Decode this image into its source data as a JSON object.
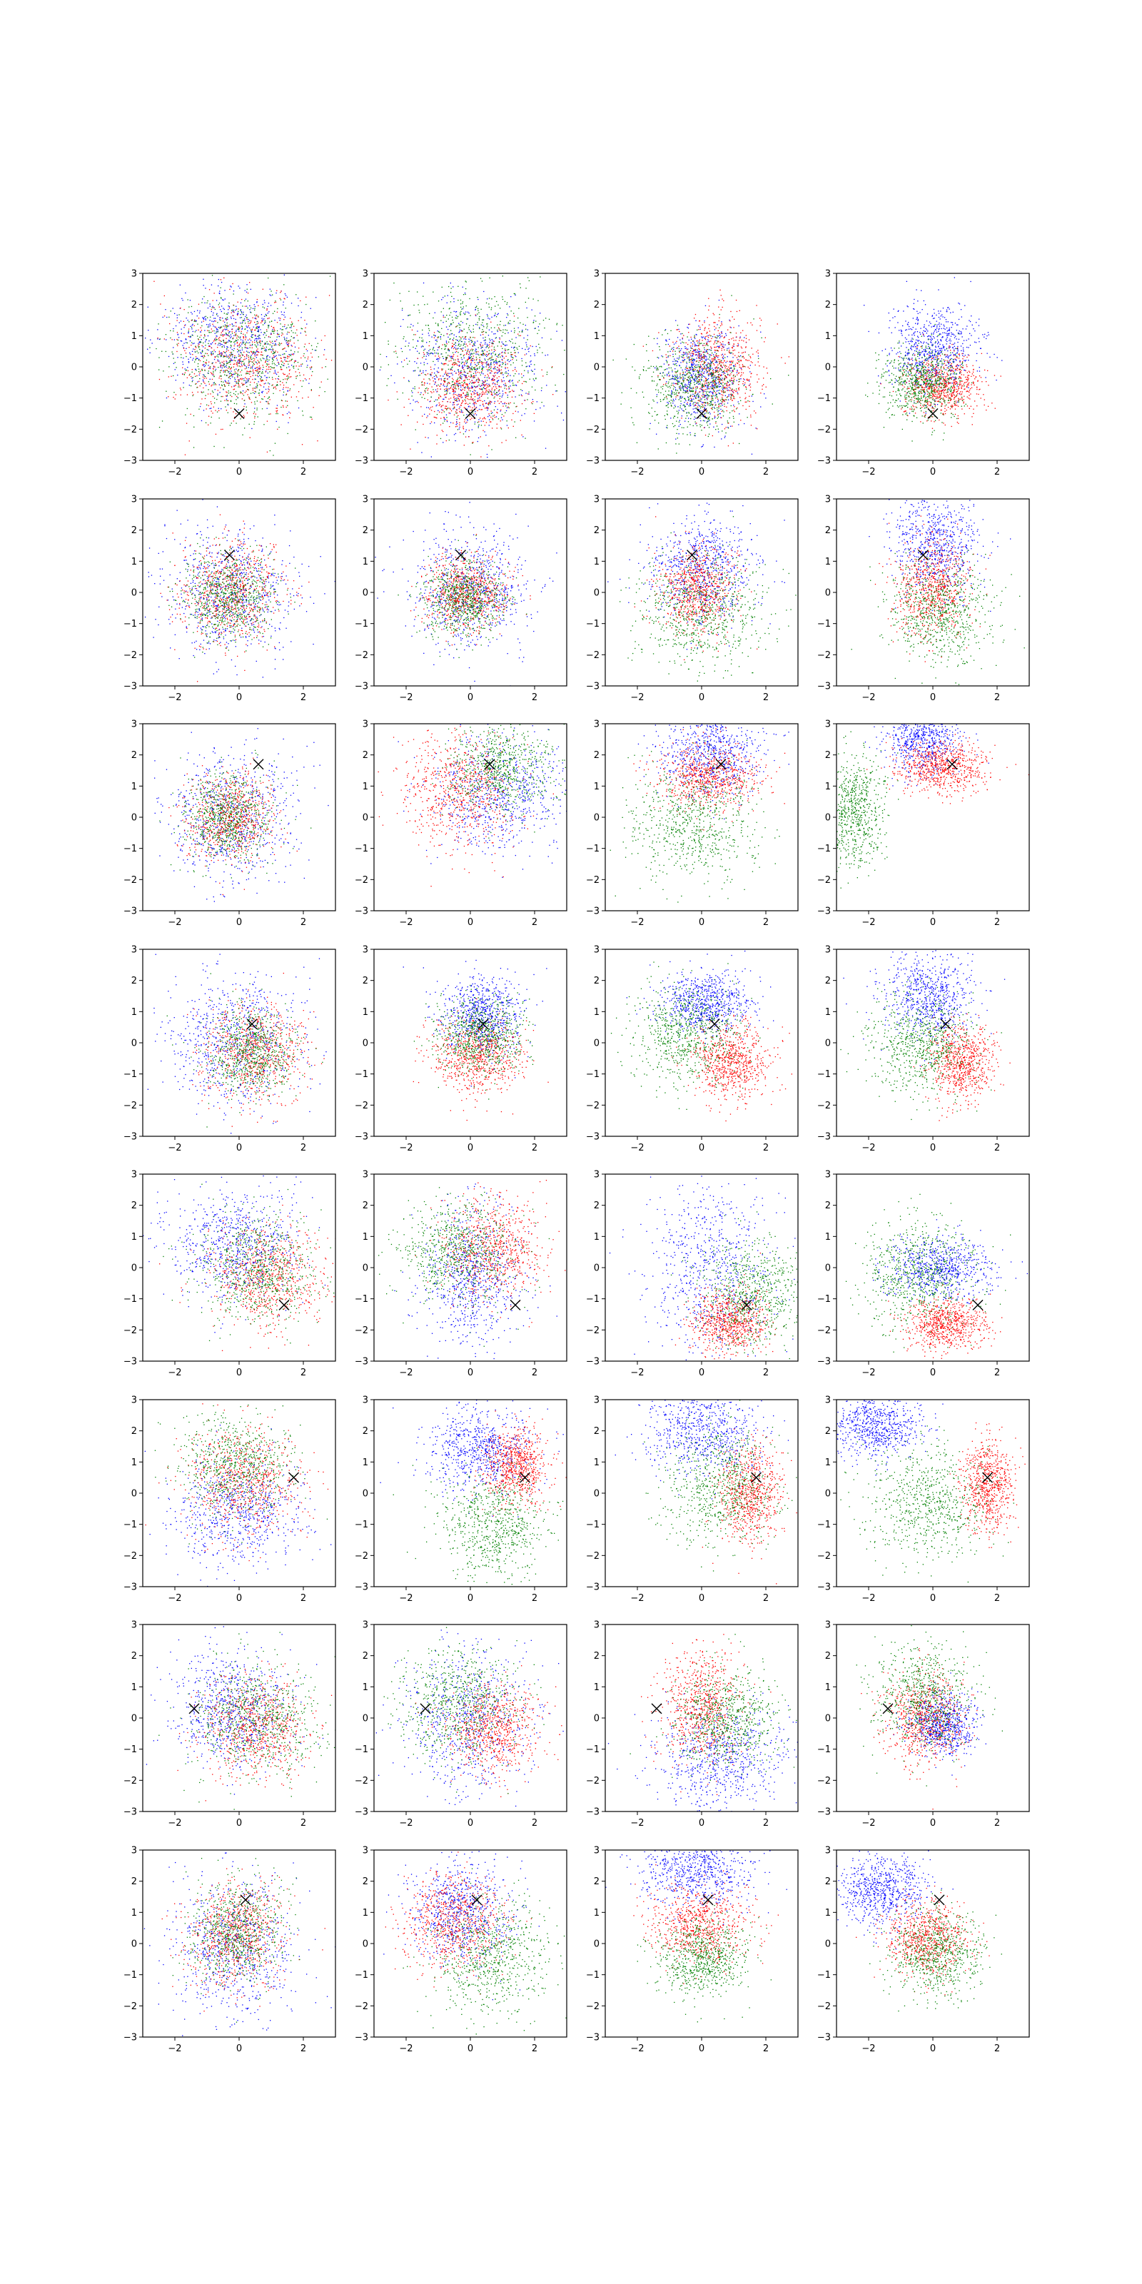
{
  "figure": {
    "rows": 8,
    "cols": 4,
    "colors": {
      "blue": "#0000ff",
      "red": "#ff0000",
      "green": "#008000",
      "marker": "#000000"
    }
  },
  "chart_data": {
    "type": "scatter",
    "note_series": [
      "blue",
      "red",
      "green"
    ],
    "xlim": [
      -3,
      3
    ],
    "ylim": [
      -3,
      3
    ],
    "xticks": [
      -2,
      0,
      2
    ],
    "yticks": [
      -3,
      -2,
      -1,
      0,
      1,
      2,
      3
    ],
    "grid": false,
    "legend": "none",
    "rows": [
      {
        "marker": [
          0.0,
          -1.5
        ],
        "panels": [
          {
            "blue": [
              [
                -0.2,
                0.8,
                1.1,
                0.9
              ]
            ],
            "red": [
              [
                0.2,
                0.2,
                1.1,
                1.0
              ]
            ],
            "green": [
              [
                0.1,
                0.3,
                1.1,
                1.0
              ]
            ]
          },
          {
            "blue": [
              [
                0.1,
                -0.1,
                1.0,
                1.0
              ]
            ],
            "red": [
              [
                -0.1,
                -0.5,
                0.8,
                0.8
              ]
            ],
            "green": [
              [
                0.0,
                0.6,
                1.2,
                1.2
              ]
            ]
          },
          {
            "blue": [
              [
                0.0,
                -0.3,
                0.6,
                0.8
              ]
            ],
            "red": [
              [
                0.5,
                0.0,
                0.7,
                0.9
              ]
            ],
            "green": [
              [
                -0.3,
                -0.5,
                0.8,
                0.8
              ]
            ]
          },
          {
            "blue": [
              [
                0.0,
                0.6,
                0.7,
                0.7
              ]
            ],
            "red": [
              [
                0.3,
                -0.6,
                0.6,
                0.5
              ]
            ],
            "green": [
              [
                -0.4,
                -0.5,
                0.6,
                0.6
              ]
            ]
          }
        ]
      },
      {
        "marker": [
          -0.3,
          1.2
        ],
        "panels": [
          {
            "blue": [
              [
                -0.3,
                0.0,
                1.0,
                1.0
              ]
            ],
            "red": [
              [
                -0.3,
                0.0,
                0.8,
                0.8
              ]
            ],
            "green": [
              [
                -0.3,
                -0.1,
                0.7,
                0.7
              ]
            ]
          },
          {
            "blue": [
              [
                0.0,
                0.2,
                0.9,
                1.0
              ]
            ],
            "red": [
              [
                -0.1,
                0.0,
                0.6,
                0.6
              ]
            ],
            "green": [
              [
                -0.2,
                -0.2,
                0.6,
                0.6
              ]
            ]
          },
          {
            "blue": [
              [
                0.0,
                0.8,
                0.8,
                0.8
              ]
            ],
            "red": [
              [
                -0.1,
                0.1,
                0.6,
                0.7
              ]
            ],
            "green": [
              [
                0.0,
                -0.6,
                1.0,
                0.9
              ]
            ]
          },
          {
            "blue": [
              [
                0.1,
                1.6,
                0.7,
                0.8
              ]
            ],
            "red": [
              [
                0.0,
                0.1,
                0.6,
                0.8
              ]
            ],
            "green": [
              [
                0.2,
                -0.6,
                0.8,
                0.8
              ]
            ]
          }
        ]
      },
      {
        "marker": [
          0.6,
          1.7
        ],
        "panels": [
          {
            "blue": [
              [
                -0.3,
                0.0,
                1.0,
                1.1
              ]
            ],
            "red": [
              [
                -0.3,
                0.0,
                0.7,
                0.7
              ]
            ],
            "green": [
              [
                -0.3,
                0.0,
                0.7,
                0.7
              ]
            ]
          },
          {
            "blue": [
              [
                0.9,
                0.7,
                1.0,
                0.9
              ]
            ],
            "red": [
              [
                -0.3,
                0.8,
                0.9,
                0.9
              ]
            ],
            "green": [
              [
                1.0,
                1.6,
                0.8,
                0.7
              ]
            ]
          },
          {
            "blue": [
              [
                0.3,
                2.1,
                0.8,
                0.7
              ]
            ],
            "red": [
              [
                0.2,
                1.3,
                0.8,
                0.5
              ]
            ],
            "green": [
              [
                -0.3,
                -0.2,
                1.0,
                0.9
              ]
            ]
          },
          {
            "blue": [
              [
                -0.3,
                2.6,
                0.6,
                0.6
              ]
            ],
            "red": [
              [
                0.3,
                1.6,
                0.7,
                0.4
              ]
            ],
            "green": [
              [
                -2.5,
                0.2,
                0.5,
                0.9
              ]
            ]
          }
        ]
      },
      {
        "marker": [
          0.4,
          0.6
        ],
        "panels": [
          {
            "blue": [
              [
                -0.1,
                0.1,
                1.1,
                1.1
              ]
            ],
            "red": [
              [
                0.5,
                -0.3,
                0.8,
                0.8
              ]
            ],
            "green": [
              [
                0.3,
                -0.3,
                0.7,
                0.7
              ]
            ]
          },
          {
            "blue": [
              [
                0.3,
                0.9,
                0.6,
                0.6
              ]
            ],
            "red": [
              [
                0.2,
                -0.4,
                0.7,
                0.6
              ]
            ],
            "green": [
              [
                0.3,
                0.3,
                0.7,
                0.6
              ]
            ]
          },
          {
            "blue": [
              [
                0.1,
                1.3,
                0.7,
                0.5
              ]
            ],
            "red": [
              [
                0.9,
                -0.6,
                0.6,
                0.6
              ]
            ],
            "green": [
              [
                -0.5,
                0.3,
                0.8,
                0.8
              ]
            ]
          },
          {
            "blue": [
              [
                -0.1,
                1.5,
                0.7,
                0.7
              ]
            ],
            "red": [
              [
                0.9,
                -0.6,
                0.5,
                0.6
              ]
            ],
            "green": [
              [
                -0.4,
                0.0,
                0.8,
                0.8
              ]
            ]
          }
        ]
      },
      {
        "marker": [
          1.4,
          -1.2
        ],
        "panels": [
          {
            "blue": [
              [
                -0.2,
                0.8,
                1.0,
                0.9
              ]
            ],
            "red": [
              [
                0.9,
                -0.3,
                0.9,
                0.8
              ]
            ],
            "green": [
              [
                0.5,
                0.0,
                0.9,
                0.9
              ]
            ]
          },
          {
            "blue": [
              [
                0.0,
                -0.3,
                0.8,
                1.1
              ]
            ],
            "red": [
              [
                0.7,
                0.6,
                0.8,
                0.8
              ]
            ],
            "green": [
              [
                -0.4,
                0.5,
                0.9,
                0.8
              ]
            ]
          },
          {
            "blue": [
              [
                0.3,
                0.0,
                1.0,
                1.4
              ]
            ],
            "red": [
              [
                0.8,
                -1.7,
                0.6,
                0.5
              ]
            ],
            "green": [
              [
                1.6,
                -0.8,
                0.8,
                0.8
              ]
            ]
          },
          {
            "blue": [
              [
                0.2,
                0.0,
                0.8,
                0.5
              ]
            ],
            "red": [
              [
                0.4,
                -1.8,
                0.6,
                0.4
              ]
            ],
            "green": [
              [
                -0.5,
                -0.2,
                0.9,
                0.9
              ]
            ]
          }
        ]
      },
      {
        "marker": [
          1.7,
          0.5
        ],
        "panels": [
          {
            "blue": [
              [
                -0.1,
                -0.6,
                1.0,
                0.9
              ]
            ],
            "red": [
              [
                0.1,
                0.4,
                0.9,
                0.9
              ]
            ],
            "green": [
              [
                -0.1,
                0.9,
                0.8,
                0.8
              ]
            ]
          },
          {
            "blue": [
              [
                0.3,
                1.4,
                0.8,
                0.7
              ]
            ],
            "red": [
              [
                1.4,
                0.9,
                0.5,
                0.6
              ]
            ],
            "green": [
              [
                0.7,
                -1.0,
                0.8,
                0.8
              ]
            ]
          },
          {
            "blue": [
              [
                0.0,
                2.0,
                0.9,
                0.7
              ]
            ],
            "red": [
              [
                1.5,
                0.0,
                0.5,
                0.8
              ]
            ],
            "green": [
              [
                0.6,
                0.2,
                0.9,
                0.9
              ]
            ]
          },
          {
            "blue": [
              [
                -1.8,
                2.2,
                0.7,
                0.5
              ]
            ],
            "red": [
              [
                1.7,
                0.3,
                0.4,
                0.7
              ]
            ],
            "green": [
              [
                -0.2,
                -0.3,
                1.0,
                0.9
              ]
            ]
          }
        ]
      },
      {
        "marker": [
          -1.4,
          0.3
        ],
        "panels": [
          {
            "blue": [
              [
                -0.3,
                0.3,
                0.9,
                0.9
              ]
            ],
            "red": [
              [
                0.5,
                -0.2,
                0.8,
                0.8
              ]
            ],
            "green": [
              [
                0.5,
                0.0,
                0.9,
                0.9
              ]
            ]
          },
          {
            "blue": [
              [
                0.0,
                -0.1,
                1.0,
                1.2
              ]
            ],
            "red": [
              [
                0.7,
                -0.3,
                0.7,
                0.7
              ]
            ],
            "green": [
              [
                -0.4,
                0.5,
                0.9,
                0.9
              ]
            ]
          },
          {
            "blue": [
              [
                0.6,
                -1.3,
                1.0,
                0.8
              ]
            ],
            "red": [
              [
                0.0,
                0.4,
                0.6,
                0.9
              ]
            ],
            "green": [
              [
                0.7,
                0.0,
                0.8,
                0.8
              ]
            ]
          },
          {
            "blue": [
              [
                0.3,
                -0.2,
                0.5,
                0.5
              ]
            ],
            "red": [
              [
                -0.3,
                0.0,
                0.6,
                0.7
              ]
            ],
            "green": [
              [
                -0.3,
                0.7,
                0.8,
                0.8
              ]
            ]
          }
        ]
      },
      {
        "marker": [
          0.2,
          1.4
        ],
        "panels": [
          {
            "blue": [
              [
                -0.2,
                -0.1,
                1.0,
                1.1
              ]
            ],
            "red": [
              [
                -0.1,
                0.3,
                0.7,
                0.8
              ]
            ],
            "green": [
              [
                -0.1,
                0.4,
                0.7,
                0.8
              ]
            ]
          },
          {
            "blue": [
              [
                -0.3,
                1.0,
                0.8,
                0.8
              ]
            ],
            "red": [
              [
                -0.5,
                0.7,
                0.8,
                0.8
              ]
            ],
            "green": [
              [
                0.7,
                -0.4,
                0.9,
                0.9
              ]
            ]
          },
          {
            "blue": [
              [
                -0.2,
                2.4,
                0.9,
                0.6
              ]
            ],
            "red": [
              [
                -0.1,
                0.6,
                0.8,
                0.6
              ]
            ],
            "green": [
              [
                0.0,
                -0.5,
                0.7,
                0.6
              ]
            ]
          },
          {
            "blue": [
              [
                -1.6,
                1.8,
                0.7,
                0.6
              ]
            ],
            "red": [
              [
                -0.2,
                0.2,
                0.6,
                0.6
              ]
            ],
            "green": [
              [
                0.1,
                -0.3,
                0.7,
                0.7
              ]
            ]
          }
        ]
      }
    ]
  }
}
